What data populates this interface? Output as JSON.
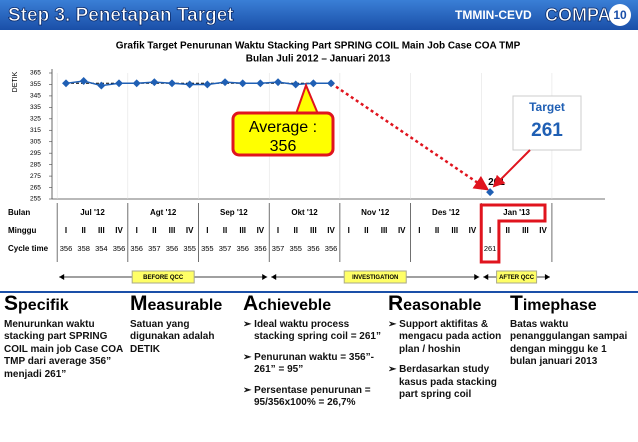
{
  "header": {
    "title": "Step 3. Penetapan Target",
    "org": "TMMIN-CEVD",
    "brand": "COMPAQ",
    "page": "10"
  },
  "chart_data": {
    "type": "line",
    "title": "Grafik Target Penurunan Waktu Stacking Part SPRING COIL Main Job Case COA TMP",
    "subtitle": "Bulan Juli 2012 – Januari 2013",
    "y_label": "DETIK",
    "ylim": [
      255,
      365
    ],
    "yticks": [
      255,
      265,
      275,
      285,
      295,
      305,
      315,
      325,
      335,
      345,
      355,
      365
    ],
    "row_labels": {
      "months": "Bulan",
      "weeks": "Minggu",
      "values": "Cycle time"
    },
    "months": [
      "Jul '12",
      "Agt '12",
      "Sep '12",
      "Okt '12",
      "Nov '12",
      "Des '12",
      "Jan '13"
    ],
    "categories": [
      "I",
      "II",
      "III",
      "IV",
      "I",
      "II",
      "III",
      "IV",
      "I",
      "II",
      "III",
      "IV",
      "I",
      "II",
      "III",
      "IV",
      "I",
      "II",
      "III",
      "IV",
      "I",
      "II",
      "III",
      "IV",
      "I",
      "II",
      "III",
      "IV"
    ],
    "color": "#1f5fb4",
    "values": [
      356,
      358,
      354,
      356,
      356,
      357,
      356,
      355,
      355,
      357,
      356,
      356,
      357,
      355,
      356,
      356,
      null,
      null,
      null,
      null,
      null,
      null,
      null,
      null,
      261,
      null,
      null,
      null
    ],
    "average_label": "Average :",
    "average": 356,
    "target_label": "Target",
    "target": 261,
    "target_color": "#e0141e",
    "phases": [
      "BEFORE QCC",
      "INVESTIGATION",
      "AFTER QCC"
    ]
  },
  "smart": [
    {
      "heading": "Specifik",
      "body": [
        "Menurunkan waktu stacking part SPRING COIL main job Case COA TMP dari average 356” menjadi 261”"
      ]
    },
    {
      "heading": "Measurable",
      "body": [
        "Satuan yang digunakan adalah DETIK"
      ]
    },
    {
      "heading": "Achieveble",
      "body": [
        "Ideal waktu process stacking spring coil = 261”",
        "Penurunan waktu = 356”- 261” = 95”",
        "Persentase penurunan = 95/356x100% = 26,7%"
      ],
      "bullets": true
    },
    {
      "heading": "Reasonable",
      "body": [
        "Support aktifitas & mengacu pada action plan / hoshin",
        "Berdasarkan study kasus pada stacking part spring coil"
      ],
      "bullets": true
    },
    {
      "heading": "Timephase",
      "body": [
        "Batas waktu penanggulangan sampai dengan minggu ke 1 bulan januari 2013"
      ]
    }
  ]
}
